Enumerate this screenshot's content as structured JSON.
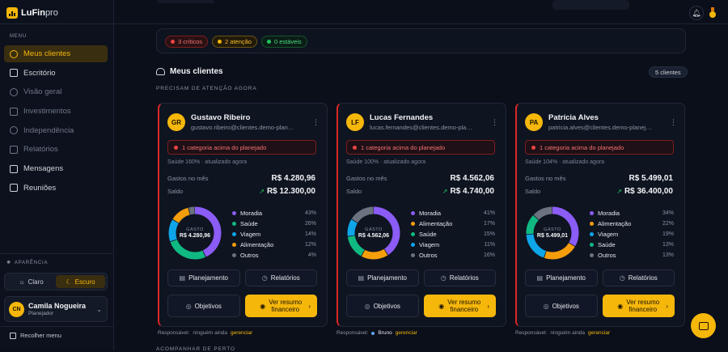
{
  "app": {
    "brand_main": "LuFin",
    "brand_suffix": "pro"
  },
  "sidebar": {
    "menu_heading": "MENU",
    "items": [
      {
        "label": "Meus clientes",
        "icon": "users-icon",
        "active": true
      },
      {
        "label": "Escritório",
        "icon": "building-icon"
      },
      {
        "label": "Visão geral",
        "icon": "eye-icon"
      },
      {
        "label": "Investimentos",
        "icon": "trend-icon"
      },
      {
        "label": "Independência",
        "icon": "compass-icon"
      },
      {
        "label": "Relatórios",
        "icon": "document-icon"
      },
      {
        "label": "Mensagens",
        "icon": "message-icon"
      },
      {
        "label": "Reuniões",
        "icon": "calendar-icon"
      }
    ],
    "appearance_heading": "APARÊNCIA",
    "theme_light": "Claro",
    "theme_dark": "Escuro",
    "user": {
      "initials": "CN",
      "name": "Camila Nogueira",
      "role": "Planejador"
    },
    "collapse_label": "Recolher menu"
  },
  "status": {
    "critical": "3 críticos",
    "attention": "2 atenção",
    "stable": "0 estáveis"
  },
  "clients_section": {
    "title": "Meus clientes",
    "count_badge": "5 clientes",
    "attention_heading": "PRECISAM DE ATENÇÃO AGORA",
    "follow_heading": "ACOMPANHAR DE PERTO"
  },
  "clients": [
    {
      "initials": "GR",
      "name": "Gustavo Ribeiro",
      "email": "gustavo.ribeiro@clientes.demo-planejar.com",
      "alert": "1 categoria acima do planejado",
      "health": "Saúde 160% · atualizado agora",
      "spent_label": "Gastos no mês",
      "spent": "R$ 4.280,96",
      "balance_label": "Saldo",
      "balance": "R$ 12.300,00",
      "donut_caption": "GASTO",
      "donut_value": "R$ 4.280,96",
      "categories": [
        {
          "name": "Moradia",
          "pct": "43%",
          "value": 43,
          "color": "#8b5cf6"
        },
        {
          "name": "Saúde",
          "pct": "26%",
          "value": 26,
          "color": "#10b981"
        },
        {
          "name": "Viagem",
          "pct": "14%",
          "value": 14,
          "color": "#0ea5e9"
        },
        {
          "name": "Alimentação",
          "pct": "12%",
          "value": 12,
          "color": "#f59e0b"
        },
        {
          "name": "Outros",
          "pct": "4%",
          "value": 4,
          "color": "#6b7280"
        }
      ],
      "btn_planning": "Planejamento",
      "btn_reports": "Relatórios",
      "btn_goals": "Objetivos",
      "btn_summary_1": "Ver resumo",
      "btn_summary_2": "financeiro",
      "responsible_label": "Responsável:",
      "responsible_value": "ninguém ainda",
      "manage": "gerenciar"
    },
    {
      "initials": "LF",
      "name": "Lucas Fernandes",
      "email": "lucas.fernandes@clientes.demo-planejar.com",
      "alert": "1 categoria acima do planejado",
      "health": "Saúde 100% · atualizado agora",
      "spent_label": "Gastos no mês",
      "spent": "R$ 4.562,06",
      "balance_label": "Saldo",
      "balance": "R$ 4.740,00",
      "donut_caption": "GASTO",
      "donut_value": "R$ 4.562,06",
      "categories": [
        {
          "name": "Moradia",
          "pct": "41%",
          "value": 41,
          "color": "#8b5cf6"
        },
        {
          "name": "Alimentação",
          "pct": "17%",
          "value": 17,
          "color": "#f59e0b"
        },
        {
          "name": "Saúde",
          "pct": "15%",
          "value": 15,
          "color": "#10b981"
        },
        {
          "name": "Viagem",
          "pct": "11%",
          "value": 11,
          "color": "#0ea5e9"
        },
        {
          "name": "Outros",
          "pct": "16%",
          "value": 16,
          "color": "#6b7280"
        }
      ],
      "btn_planning": "Planejamento",
      "btn_reports": "Relatórios",
      "btn_goals": "Objetivos",
      "btn_summary_1": "Ver resumo",
      "btn_summary_2": "financeiro",
      "responsible_label": "Responsável:",
      "responsible_value": "Bruno",
      "manage": "gerenciar"
    },
    {
      "initials": "PA",
      "name": "Patrícia Alves",
      "email": "patricia.alves@clientes.demo-planejar.com",
      "alert": "1 categoria acima do planejado",
      "health": "Saúde 104% · atualizado agora",
      "spent_label": "Gastos no mês",
      "spent": "R$ 5.499,01",
      "balance_label": "Saldo",
      "balance": "R$ 36.400,00",
      "donut_caption": "GASTO",
      "donut_value": "R$ 5.499,01",
      "categories": [
        {
          "name": "Moradia",
          "pct": "34%",
          "value": 34,
          "color": "#8b5cf6"
        },
        {
          "name": "Alimentação",
          "pct": "22%",
          "value": 22,
          "color": "#f59e0b"
        },
        {
          "name": "Viagem",
          "pct": "19%",
          "value": 19,
          "color": "#0ea5e9"
        },
        {
          "name": "Saúde",
          "pct": "13%",
          "value": 13,
          "color": "#10b981"
        },
        {
          "name": "Outros",
          "pct": "13%",
          "value": 13,
          "color": "#6b7280"
        }
      ],
      "btn_planning": "Planejamento",
      "btn_reports": "Relatórios",
      "btn_goals": "Objetivos",
      "btn_summary_1": "Ver resumo",
      "btn_summary_2": "financeiro",
      "responsible_label": "Responsável:",
      "responsible_value": "ninguém ainda",
      "manage": "gerenciar"
    }
  ],
  "colors": {
    "accent": "#f5b70a",
    "critical": "#dc2626",
    "background": "#0b0f1a"
  }
}
